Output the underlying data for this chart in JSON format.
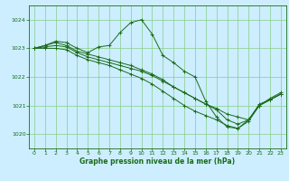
{
  "title": "Graphe pression niveau de la mer (hPa)",
  "background_color": "#cceeff",
  "line_color": "#1a6b1a",
  "grid_color": "#88cc88",
  "xlim": [
    -0.5,
    23.5
  ],
  "ylim": [
    1019.5,
    1024.5
  ],
  "yticks": [
    1020,
    1021,
    1022,
    1023,
    1024
  ],
  "xticks": [
    0,
    1,
    2,
    3,
    4,
    5,
    6,
    7,
    8,
    9,
    10,
    11,
    12,
    13,
    14,
    15,
    16,
    17,
    18,
    19,
    20,
    21,
    22,
    23
  ],
  "series": [
    {
      "x": [
        0,
        1,
        2,
        3,
        4,
        5,
        6,
        7,
        8,
        9,
        10,
        11,
        12,
        13,
        14,
        15,
        16,
        17,
        18,
        19,
        20,
        21,
        22,
        23
      ],
      "y": [
        1023.0,
        1023.1,
        1023.25,
        1023.2,
        1023.0,
        1022.85,
        1023.05,
        1023.1,
        1023.55,
        1023.9,
        1024.0,
        1023.5,
        1022.75,
        1022.5,
        1022.2,
        1022.0,
        1021.15,
        1020.6,
        1020.25,
        1020.2,
        1020.5,
        1021.05,
        1021.2,
        1021.4
      ]
    },
    {
      "x": [
        0,
        1,
        2,
        3,
        4,
        5,
        6,
        7,
        8,
        9,
        10,
        11,
        12,
        13,
        14,
        15,
        16,
        17,
        18,
        19,
        20,
        21,
        22,
        23
      ],
      "y": [
        1023.0,
        1023.05,
        1023.1,
        1023.05,
        1022.85,
        1022.7,
        1022.6,
        1022.5,
        1022.4,
        1022.3,
        1022.2,
        1022.05,
        1021.85,
        1021.65,
        1021.45,
        1021.25,
        1021.05,
        1020.85,
        1020.5,
        1020.35,
        1020.5,
        1021.0,
        1021.2,
        1021.4
      ]
    },
    {
      "x": [
        0,
        1,
        2,
        3,
        4,
        5,
        6,
        7,
        8,
        9,
        10,
        11,
        12,
        13,
        14,
        15,
        16,
        17,
        18,
        19,
        20,
        21,
        22,
        23
      ],
      "y": [
        1023.0,
        1023.0,
        1023.0,
        1022.95,
        1022.75,
        1022.6,
        1022.5,
        1022.4,
        1022.25,
        1022.1,
        1021.95,
        1021.75,
        1021.5,
        1021.25,
        1021.0,
        1020.8,
        1020.65,
        1020.5,
        1020.3,
        1020.2,
        1020.45,
        1021.0,
        1021.2,
        1021.4
      ]
    },
    {
      "x": [
        0,
        1,
        2,
        3,
        4,
        5,
        6,
        7,
        8,
        9,
        10,
        11,
        12,
        13,
        14,
        15,
        16,
        17,
        18,
        19,
        20,
        21,
        22,
        23
      ],
      "y": [
        1023.0,
        1023.1,
        1023.2,
        1023.1,
        1022.9,
        1022.8,
        1022.7,
        1022.6,
        1022.5,
        1022.4,
        1022.25,
        1022.1,
        1021.9,
        1021.65,
        1021.45,
        1021.25,
        1021.05,
        1020.9,
        1020.7,
        1020.6,
        1020.5,
        1021.0,
        1021.25,
        1021.45
      ]
    }
  ]
}
